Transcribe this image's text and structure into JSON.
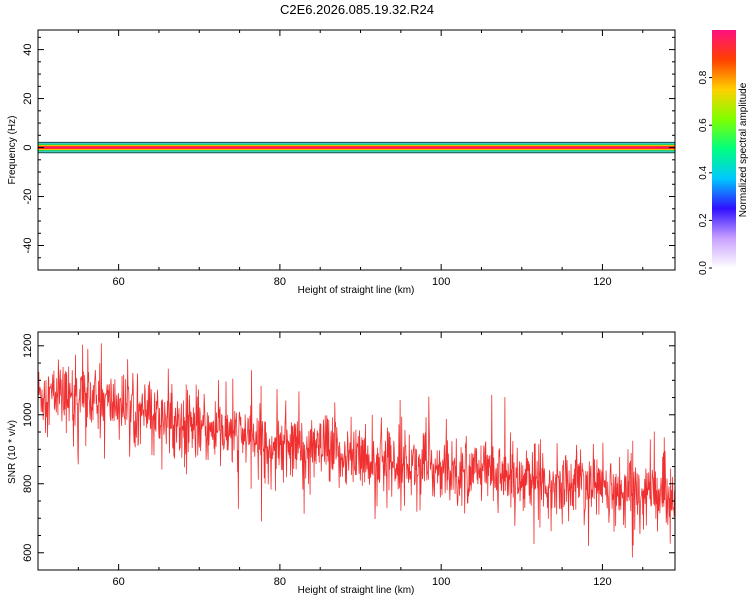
{
  "title": "C2E6.2026.085.19.32.R24",
  "colors": {
    "snr_line": "#f03030",
    "axis": "#000000"
  },
  "chart_data": [
    {
      "type": "heatmap",
      "xlabel": "Height of straight line (km)",
      "ylabel": "Frequency (Hz)",
      "xlim": [
        50,
        129
      ],
      "ylim": [
        -50,
        48
      ],
      "xticks": [
        60,
        80,
        100,
        120
      ],
      "yticks": [
        40,
        20,
        0,
        -20,
        -40
      ],
      "grid": false,
      "band": {
        "frequency": 0,
        "bandwidth_hz": 2
      },
      "colorbar": {
        "label": "Normalized spectral amplitude",
        "ticks": [
          0.0,
          0.2,
          0.4,
          0.6,
          0.8
        ],
        "range": [
          0,
          1
        ],
        "stops": [
          "#ffffff",
          "#c8a0ff",
          "#3010ff",
          "#00c8ff",
          "#00ff80",
          "#80ff00",
          "#ffd000",
          "#ff4000",
          "#ff1080"
        ]
      },
      "faint_regions": [
        {
          "x": [
            86,
            89
          ],
          "y": [
            -2,
            2
          ],
          "amplitude": 0.15
        },
        {
          "x": [
            106,
            123
          ],
          "y": [
            -2,
            2
          ],
          "amplitude": 0.1
        }
      ]
    },
    {
      "type": "line",
      "xlabel": "Height of straight line (km)",
      "ylabel": "SNR (10 * v/v)",
      "xlim": [
        50,
        129
      ],
      "ylim": [
        550,
        1240
      ],
      "xticks": [
        60,
        80,
        100,
        120
      ],
      "yticks": [
        1200,
        1000,
        800,
        600
      ],
      "grid": false,
      "series": [
        {
          "trend_x": [
            50,
            55,
            60,
            65,
            70,
            75,
            80,
            85,
            90,
            95,
            100,
            105,
            110,
            115,
            120,
            125,
            129
          ],
          "trend_y": [
            1060,
            1050,
            1030,
            990,
            960,
            935,
            910,
            895,
            875,
            860,
            845,
            835,
            820,
            805,
            790,
            775,
            765
          ],
          "noise_amplitude": 85,
          "samples": 1600
        }
      ]
    }
  ]
}
